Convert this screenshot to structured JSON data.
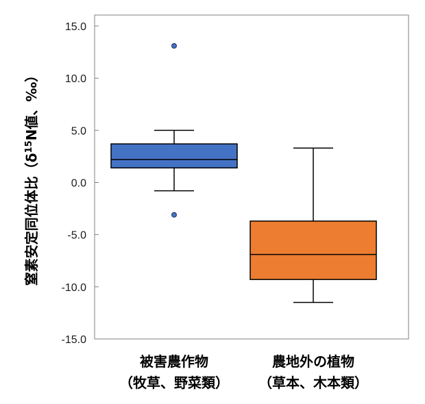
{
  "chart_data": {
    "type": "box",
    "title": "",
    "xlabel": "",
    "ylabel": "窒素安定同位体比（δ15N値、‰）",
    "ylabel_parts": {
      "before": "窒素安定同位体比（δ",
      "sup": "15",
      "after": "N値、‰）"
    },
    "ylim": [
      -15,
      15
    ],
    "yticks": [
      -15,
      -10,
      -5,
      0,
      5,
      10,
      15
    ],
    "ytick_labels": [
      "-15.0",
      "-10.0",
      "-5.0",
      "0.0",
      "5.0",
      "10.0",
      "15.0"
    ],
    "grid": false,
    "categories": [
      {
        "line1": "被害農作物",
        "line2": "（牧草、野菜類）"
      },
      {
        "line1": "農地外の植物",
        "line2": "（草本、木本類）"
      }
    ],
    "series": [
      {
        "whisker_low": -0.8,
        "q1": 1.4,
        "median": 2.2,
        "q3": 3.7,
        "whisker_high": 5.0,
        "outliers": [
          13.1,
          -3.1
        ],
        "color": "#4472c4"
      },
      {
        "whisker_low": -11.5,
        "q1": -9.3,
        "median": -6.9,
        "q3": -3.7,
        "whisker_high": 3.3,
        "outliers": [],
        "color": "#ed7d31"
      }
    ]
  }
}
